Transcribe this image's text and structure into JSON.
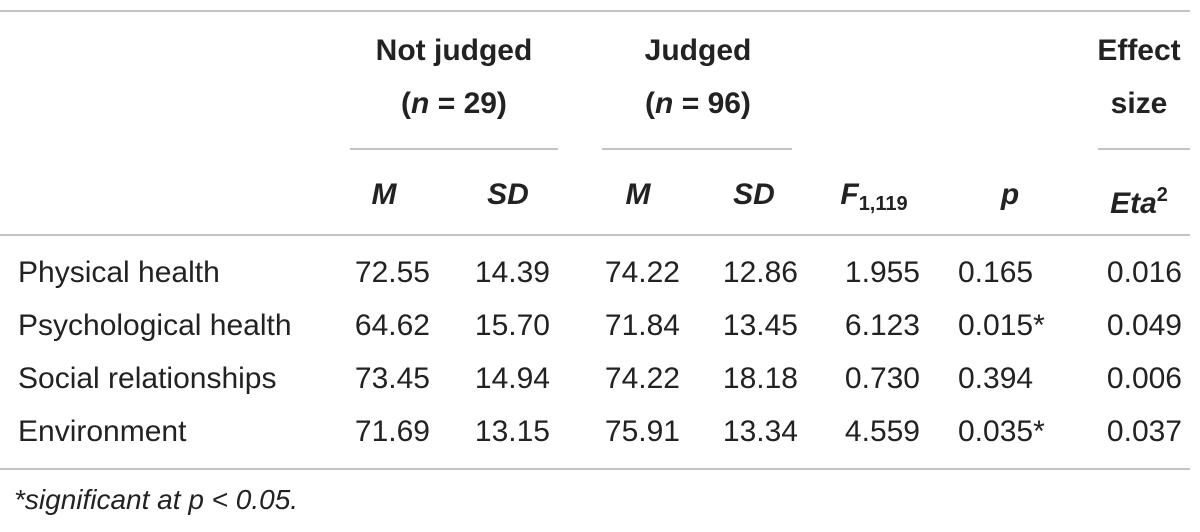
{
  "table": {
    "groups": {
      "not_judged": {
        "line1": "Not judged",
        "n_open": "(",
        "n_var": "n",
        "n_rest": " = 29)"
      },
      "judged": {
        "line1": "Judged",
        "n_open": "(",
        "n_var": "n",
        "n_rest": " = 96)"
      },
      "effect": {
        "line1": "Effect",
        "line2": "size"
      }
    },
    "columns": {
      "m1": "M",
      "sd1": "SD",
      "m2": "M",
      "sd2": "SD",
      "f_main": "F",
      "f_sub": "1,119",
      "p": "p",
      "eta_main": "Eta",
      "eta_sup": "2"
    },
    "rows": [
      {
        "label": "Physical health",
        "m1": "72.55",
        "sd1": "14.39",
        "m2": "74.22",
        "sd2": "12.86",
        "f": "1.955",
        "p": "0.165",
        "eta": "0.016"
      },
      {
        "label": "Psychological health",
        "m1": "64.62",
        "sd1": "15.70",
        "m2": "71.84",
        "sd2": "13.45",
        "f": "6.123",
        "p": "0.015*",
        "eta": "0.049"
      },
      {
        "label": "Social relationships",
        "m1": "73.45",
        "sd1": "14.94",
        "m2": "74.22",
        "sd2": "18.18",
        "f": "0.730",
        "p": "0.394",
        "eta": "0.006"
      },
      {
        "label": "Environment",
        "m1": "71.69",
        "sd1": "13.15",
        "m2": "75.91",
        "sd2": "13.34",
        "f": "4.559",
        "p": "0.035*",
        "eta": "0.037"
      }
    ],
    "footnote": "*significant at p < 0.05."
  }
}
